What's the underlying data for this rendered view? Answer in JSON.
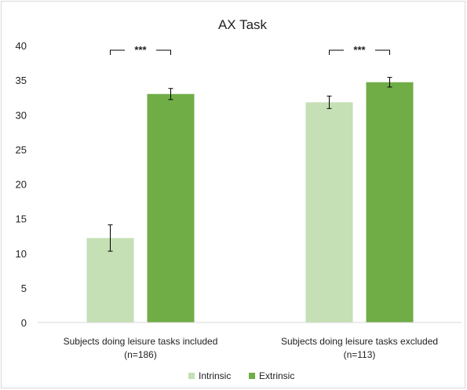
{
  "chart_data": {
    "type": "bar",
    "title": "AX Task",
    "xlabel": "",
    "ylabel": "",
    "ylim": [
      0,
      40
    ],
    "yticks": [
      0,
      5,
      10,
      15,
      20,
      25,
      30,
      35,
      40
    ],
    "grid": false,
    "legend_position": "bottom",
    "categories": [
      [
        "Subjects doing leisure tasks included",
        "(n=186)"
      ],
      [
        "Subjects doing leisure tasks excluded",
        "(n=113)"
      ]
    ],
    "series": [
      {
        "name": "Intrinsic",
        "color": "#c5e0b4",
        "values": [
          12.2,
          31.8
        ],
        "error": [
          1.9,
          0.9
        ]
      },
      {
        "name": "Extrinsic",
        "color": "#70ad47",
        "values": [
          33.0,
          34.7
        ],
        "error": [
          0.8,
          0.7
        ]
      }
    ],
    "annotations": [
      {
        "category_index": 0,
        "label": "***"
      },
      {
        "category_index": 1,
        "label": "***"
      }
    ]
  }
}
